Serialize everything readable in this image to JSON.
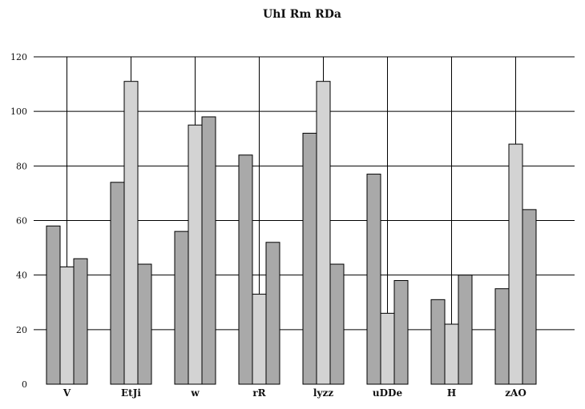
{
  "chart_data": {
    "type": "bar",
    "title": "UhI Rm  RDa",
    "xlabel": "",
    "ylabel": "",
    "ylim": [
      0,
      120
    ],
    "yticks": [
      0,
      20,
      40,
      60,
      80,
      100,
      120
    ],
    "grid": true,
    "legend": "none",
    "categories": [
      "V",
      "EtJi",
      "w",
      "rR",
      "lyzz",
      "uDDe",
      "H",
      "zAO"
    ],
    "series": [
      {
        "color": "#a9a9a9",
        "values": [
          58,
          74,
          56,
          84,
          92,
          77,
          31,
          35
        ]
      },
      {
        "color": "#d3d3d3",
        "values": [
          43,
          111,
          95,
          33,
          111,
          26,
          22,
          88
        ]
      },
      {
        "color": "#a9a9a9",
        "values": [
          46,
          44,
          98,
          52,
          44,
          38,
          40,
          64
        ]
      }
    ]
  }
}
